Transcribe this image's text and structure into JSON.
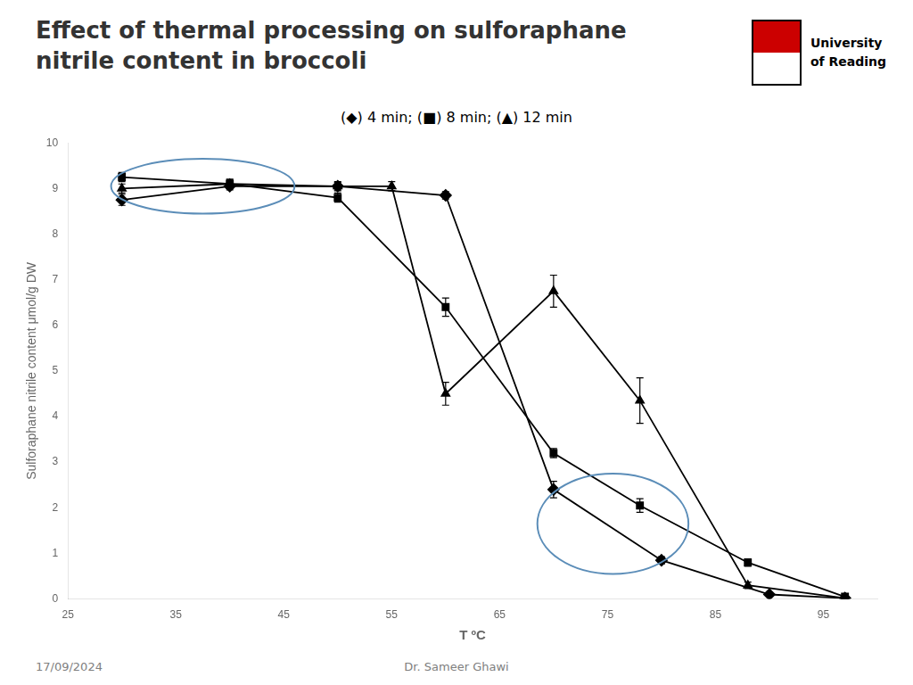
{
  "chart_data": {
    "type": "line",
    "title": [
      "Effect of thermal processing  on sulforaphane",
      "nitrile content in broccoli"
    ],
    "x_label": "T ºC",
    "y_label": "Sulforaphane nitrile content μmol/g DW",
    "xlim": [
      25,
      100
    ],
    "ylim": [
      0,
      10
    ],
    "xticks": [
      25,
      35,
      45,
      55,
      65,
      75,
      85,
      95
    ],
    "yticks": [
      0,
      1,
      2,
      3,
      4,
      5,
      6,
      7,
      8,
      9,
      10
    ],
    "grid": false,
    "series": [
      {
        "name": "4 min",
        "marker": "diamond",
        "color": "#000000",
        "x": [
          30,
          40,
          50,
          60,
          70,
          80,
          90,
          97
        ],
        "values": [
          8.75,
          9.05,
          9.05,
          8.85,
          2.4,
          0.85,
          0.1,
          0.02
        ],
        "yerr": [
          0.12,
          0.08,
          0.08,
          0.08,
          0.18,
          0.08,
          0.04,
          0.01
        ]
      },
      {
        "name": "8 min",
        "marker": "square",
        "color": "#000000",
        "x": [
          30,
          40,
          50,
          60,
          70,
          78,
          88,
          97
        ],
        "values": [
          9.25,
          9.1,
          8.8,
          6.4,
          3.2,
          2.05,
          0.8,
          0.05
        ],
        "yerr": [
          0.1,
          0.1,
          0.1,
          0.2,
          0.1,
          0.15,
          0.08,
          0.03
        ]
      },
      {
        "name": "12 min",
        "marker": "triangle",
        "color": "#000000",
        "x": [
          30,
          40,
          50,
          55,
          60,
          70,
          78,
          88,
          97
        ],
        "values": [
          9.0,
          9.1,
          9.05,
          9.05,
          4.5,
          6.75,
          4.35,
          0.3,
          0.02
        ],
        "yerr": [
          0.1,
          0.1,
          0.1,
          0.1,
          0.25,
          0.35,
          0.5,
          0.07,
          0.01
        ]
      }
    ],
    "ellipses": [
      {
        "x": 37.5,
        "y": 9.05,
        "width": 17,
        "height": 1.2,
        "color": "#5B8DB8"
      },
      {
        "x": 75.5,
        "y": 1.65,
        "width": 14,
        "height": 2.2,
        "color": "#5B8DB8"
      }
    ],
    "annotations": [
      "(◆) 4 min; (■) 8 min; (▲) 12 min",
      "University",
      "of Reading",
      "17/09/2024",
      "Dr. Sameer Ghawi"
    ]
  }
}
